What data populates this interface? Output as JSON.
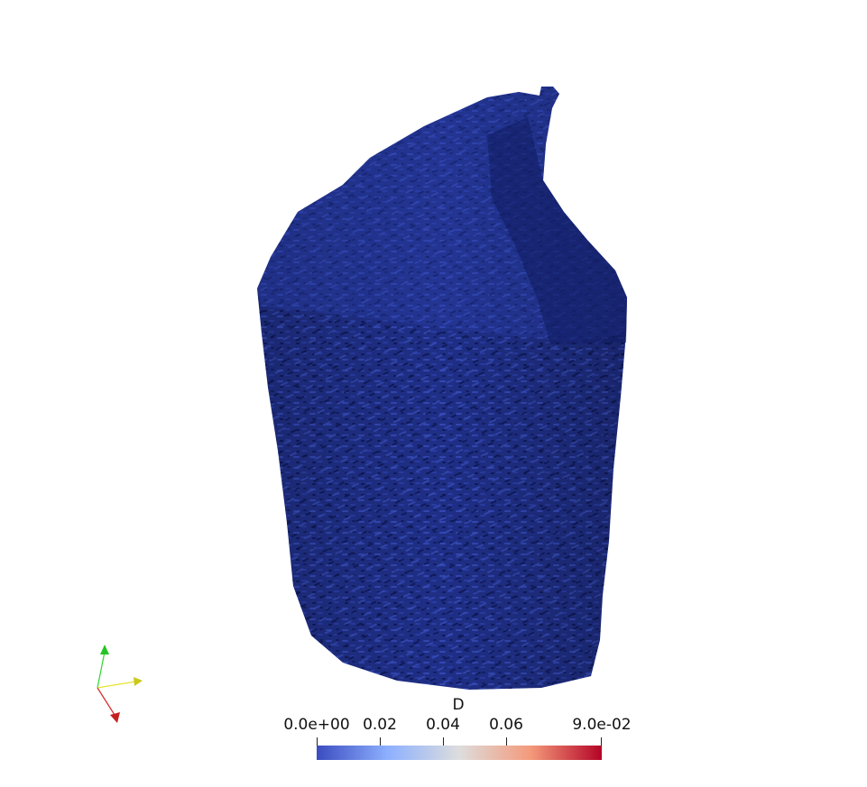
{
  "scene": {
    "object": "mesh-rendering",
    "surface_color": "#1f2f86",
    "highlight_color": "#3347b3",
    "shadow_color": "#0f1a5c",
    "background": "#ffffff"
  },
  "orientation_axes": {
    "x_color": "#d62828",
    "y_color": "#e5e52a",
    "z_color": "#2bd62b"
  },
  "colorbar": {
    "title": "D",
    "labels": [
      "0.0e+00",
      "0.02",
      "0.04",
      "0.06",
      "9.0e-02"
    ],
    "range": [
      0.0,
      0.09
    ],
    "colormap": "cool-to-warm",
    "colors": [
      "#3b4cc0",
      "#8db0fe",
      "#dddddd",
      "#f49a7b",
      "#b40426"
    ]
  }
}
